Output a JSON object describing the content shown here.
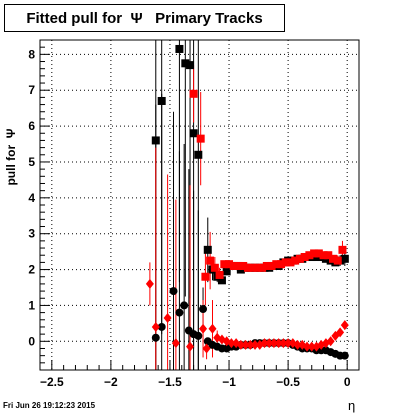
{
  "chart_data": {
    "type": "scatter",
    "title": "Fitted pull for  Ψ   Primary Tracks",
    "xlabel": "η",
    "ylabel": "pull for  Ψ",
    "xlim": [
      -2.6,
      0.1
    ],
    "ylim": [
      -0.8,
      8.4
    ],
    "xticks": [
      -2.5,
      -2,
      -1.5,
      -1,
      -0.5,
      0
    ],
    "xtick_labels": [
      "−2.5",
      "−2",
      "−1.5",
      "−1",
      "−0.5",
      "0"
    ],
    "yticks": [
      0,
      1,
      2,
      3,
      4,
      5,
      6,
      7,
      8
    ],
    "ytick_labels": [
      "0",
      "1",
      "2",
      "3",
      "4",
      "5",
      "6",
      "7",
      "8"
    ],
    "grid": true,
    "footer": "Fri Jun 26 19:12:23 2015",
    "series": [
      {
        "color": "#000000",
        "marker": "square",
        "points": [
          {
            "x": -1.62,
            "y": 5.6,
            "err": 6.5
          },
          {
            "x": -1.57,
            "y": 6.7,
            "err": 6.5
          },
          {
            "x": -1.42,
            "y": 8.15,
            "err": 6.5
          },
          {
            "x": -1.37,
            "y": 7.75,
            "err": 6.5
          },
          {
            "x": -1.33,
            "y": 7.7,
            "err": 6.5
          },
          {
            "x": -1.3,
            "y": 5.8,
            "err": 6.0
          },
          {
            "x": -1.26,
            "y": 5.2,
            "err": 6.0
          },
          {
            "x": -1.18,
            "y": 2.55,
            "err": 0.9
          },
          {
            "x": -1.14,
            "y": 2.0,
            "err": 0.3
          },
          {
            "x": -1.1,
            "y": 1.8,
            "err": 0.15
          },
          {
            "x": -1.06,
            "y": 1.7,
            "err": 0.1
          },
          {
            "x": -1.02,
            "y": 1.95,
            "err": 0.1
          },
          {
            "x": -0.98,
            "y": 2.1,
            "err": 0.08
          },
          {
            "x": -0.94,
            "y": 2.1,
            "err": 0.08
          },
          {
            "x": -0.9,
            "y": 2.0,
            "err": 0.08
          },
          {
            "x": -0.86,
            "y": 2.05,
            "err": 0.06
          },
          {
            "x": -0.82,
            "y": 2.05,
            "err": 0.06
          },
          {
            "x": -0.78,
            "y": 2.05,
            "err": 0.06
          },
          {
            "x": -0.74,
            "y": 2.05,
            "err": 0.06
          },
          {
            "x": -0.7,
            "y": 2.05,
            "err": 0.06
          },
          {
            "x": -0.66,
            "y": 2.05,
            "err": 0.06
          },
          {
            "x": -0.62,
            "y": 2.1,
            "err": 0.06
          },
          {
            "x": -0.58,
            "y": 2.1,
            "err": 0.06
          },
          {
            "x": -0.54,
            "y": 2.2,
            "err": 0.06
          },
          {
            "x": -0.5,
            "y": 2.25,
            "err": 0.06
          },
          {
            "x": -0.46,
            "y": 2.25,
            "err": 0.06
          },
          {
            "x": -0.42,
            "y": 2.3,
            "err": 0.06
          },
          {
            "x": -0.38,
            "y": 2.3,
            "err": 0.06
          },
          {
            "x": -0.34,
            "y": 2.35,
            "err": 0.06
          },
          {
            "x": -0.3,
            "y": 2.35,
            "err": 0.06
          },
          {
            "x": -0.26,
            "y": 2.35,
            "err": 0.06
          },
          {
            "x": -0.22,
            "y": 2.35,
            "err": 0.06
          },
          {
            "x": -0.18,
            "y": 2.3,
            "err": 0.06
          },
          {
            "x": -0.14,
            "y": 2.25,
            "err": 0.06
          },
          {
            "x": -0.1,
            "y": 2.2,
            "err": 0.1
          },
          {
            "x": -0.06,
            "y": 2.25,
            "err": 0.15
          },
          {
            "x": -0.02,
            "y": 2.3,
            "err": 0.2
          }
        ]
      },
      {
        "color": "#ff0000",
        "marker": "square",
        "points": [
          {
            "x": -1.3,
            "y": 6.9,
            "err": 0.8
          },
          {
            "x": -1.24,
            "y": 5.65,
            "err": 1.3
          },
          {
            "x": -1.2,
            "y": 1.8,
            "err": 0.8
          },
          {
            "x": -1.16,
            "y": 2.25,
            "err": 0.8
          },
          {
            "x": -1.12,
            "y": 2.05,
            "err": 0.3
          },
          {
            "x": -1.08,
            "y": 1.85,
            "err": 0.2
          },
          {
            "x": -1.04,
            "y": 2.15,
            "err": 0.1
          },
          {
            "x": -1.0,
            "y": 2.15,
            "err": 0.1
          },
          {
            "x": -0.96,
            "y": 2.1,
            "err": 0.08
          },
          {
            "x": -0.92,
            "y": 2.1,
            "err": 0.08
          },
          {
            "x": -0.88,
            "y": 2.1,
            "err": 0.08
          },
          {
            "x": -0.84,
            "y": 2.05,
            "err": 0.06
          },
          {
            "x": -0.8,
            "y": 2.05,
            "err": 0.06
          },
          {
            "x": -0.76,
            "y": 2.05,
            "err": 0.06
          },
          {
            "x": -0.72,
            "y": 2.05,
            "err": 0.06
          },
          {
            "x": -0.68,
            "y": 2.1,
            "err": 0.06
          },
          {
            "x": -0.64,
            "y": 2.1,
            "err": 0.06
          },
          {
            "x": -0.6,
            "y": 2.15,
            "err": 0.06
          },
          {
            "x": -0.56,
            "y": 2.15,
            "err": 0.06
          },
          {
            "x": -0.52,
            "y": 2.2,
            "err": 0.06
          },
          {
            "x": -0.48,
            "y": 2.2,
            "err": 0.06
          },
          {
            "x": -0.44,
            "y": 2.25,
            "err": 0.06
          },
          {
            "x": -0.4,
            "y": 2.3,
            "err": 0.06
          },
          {
            "x": -0.36,
            "y": 2.35,
            "err": 0.06
          },
          {
            "x": -0.32,
            "y": 2.4,
            "err": 0.06
          },
          {
            "x": -0.28,
            "y": 2.45,
            "err": 0.06
          },
          {
            "x": -0.24,
            "y": 2.45,
            "err": 0.06
          },
          {
            "x": -0.2,
            "y": 2.4,
            "err": 0.06
          },
          {
            "x": -0.16,
            "y": 2.4,
            "err": 0.06
          },
          {
            "x": -0.12,
            "y": 2.3,
            "err": 0.1
          },
          {
            "x": -0.08,
            "y": 2.25,
            "err": 0.15
          },
          {
            "x": -0.04,
            "y": 2.55,
            "err": 0.25
          }
        ]
      },
      {
        "color": "#000000",
        "marker": "circle",
        "points": [
          {
            "x": -1.62,
            "y": 0.1,
            "err": 6.5
          },
          {
            "x": -1.57,
            "y": 0.4,
            "err": 6.5
          },
          {
            "x": -1.47,
            "y": 1.4,
            "err": 5.0
          },
          {
            "x": -1.42,
            "y": 0.8,
            "err": 4.5
          },
          {
            "x": -1.38,
            "y": 1.0,
            "err": 4.5
          },
          {
            "x": -1.34,
            "y": 0.3,
            "err": 4.5
          },
          {
            "x": -1.3,
            "y": 0.2,
            "err": 4.0
          },
          {
            "x": -1.26,
            "y": 0.15,
            "err": 3.5
          },
          {
            "x": -1.22,
            "y": 0.9,
            "err": 0.6
          },
          {
            "x": -1.18,
            "y": 0.0,
            "err": 0.1
          },
          {
            "x": -1.14,
            "y": -0.1,
            "err": 0.1
          },
          {
            "x": -1.1,
            "y": -0.15,
            "err": 0.08
          },
          {
            "x": -1.06,
            "y": -0.2,
            "err": 0.06
          },
          {
            "x": -1.02,
            "y": -0.2,
            "err": 0.06
          },
          {
            "x": -0.98,
            "y": -0.15,
            "err": 0.05
          },
          {
            "x": -0.94,
            "y": -0.15,
            "err": 0.05
          },
          {
            "x": -0.9,
            "y": -0.1,
            "err": 0.05
          },
          {
            "x": -0.86,
            "y": -0.1,
            "err": 0.05
          },
          {
            "x": -0.82,
            "y": -0.1,
            "err": 0.05
          },
          {
            "x": -0.78,
            "y": -0.05,
            "err": 0.05
          },
          {
            "x": -0.74,
            "y": -0.05,
            "err": 0.05
          },
          {
            "x": -0.7,
            "y": -0.05,
            "err": 0.05
          },
          {
            "x": -0.66,
            "y": -0.05,
            "err": 0.05
          },
          {
            "x": -0.62,
            "y": -0.05,
            "err": 0.05
          },
          {
            "x": -0.58,
            "y": -0.05,
            "err": 0.05
          },
          {
            "x": -0.54,
            "y": -0.05,
            "err": 0.05
          },
          {
            "x": -0.5,
            "y": -0.05,
            "err": 0.05
          },
          {
            "x": -0.46,
            "y": -0.1,
            "err": 0.05
          },
          {
            "x": -0.42,
            "y": -0.15,
            "err": 0.05
          },
          {
            "x": -0.38,
            "y": -0.2,
            "err": 0.05
          },
          {
            "x": -0.34,
            "y": -0.2,
            "err": 0.05
          },
          {
            "x": -0.3,
            "y": -0.2,
            "err": 0.05
          },
          {
            "x": -0.26,
            "y": -0.25,
            "err": 0.05
          },
          {
            "x": -0.22,
            "y": -0.25,
            "err": 0.05
          },
          {
            "x": -0.18,
            "y": -0.25,
            "err": 0.05
          },
          {
            "x": -0.14,
            "y": -0.3,
            "err": 0.05
          },
          {
            "x": -0.1,
            "y": -0.35,
            "err": 0.05
          },
          {
            "x": -0.06,
            "y": -0.4,
            "err": 0.08
          },
          {
            "x": -0.02,
            "y": -0.4,
            "err": 0.1
          }
        ]
      },
      {
        "color": "#ff0000",
        "marker": "diamond",
        "points": [
          {
            "x": -1.67,
            "y": 1.6,
            "err": 0.6
          },
          {
            "x": -1.62,
            "y": 0.4,
            "err": 5.0
          },
          {
            "x": -1.52,
            "y": 0.65,
            "err": 4.0
          },
          {
            "x": -1.45,
            "y": -0.05,
            "err": 4.0
          },
          {
            "x": -1.33,
            "y": -0.15,
            "err": 4.5
          },
          {
            "x": -1.22,
            "y": 0.35,
            "err": 0.8
          },
          {
            "x": -1.19,
            "y": -0.2,
            "err": 0.3
          },
          {
            "x": -1.14,
            "y": 0.35,
            "err": 0.8
          },
          {
            "x": -1.1,
            "y": 0.1,
            "err": 0.2
          },
          {
            "x": -1.06,
            "y": 0.05,
            "err": 0.1
          },
          {
            "x": -1.02,
            "y": 0.0,
            "err": 0.08
          },
          {
            "x": -0.98,
            "y": -0.05,
            "err": 0.06
          },
          {
            "x": -0.94,
            "y": -0.05,
            "err": 0.06
          },
          {
            "x": -0.9,
            "y": -0.1,
            "err": 0.06
          },
          {
            "x": -0.86,
            "y": -0.1,
            "err": 0.05
          },
          {
            "x": -0.82,
            "y": -0.1,
            "err": 0.05
          },
          {
            "x": -0.78,
            "y": -0.1,
            "err": 0.05
          },
          {
            "x": -0.74,
            "y": -0.1,
            "err": 0.05
          },
          {
            "x": -0.7,
            "y": -0.05,
            "err": 0.05
          },
          {
            "x": -0.66,
            "y": -0.05,
            "err": 0.05
          },
          {
            "x": -0.62,
            "y": -0.05,
            "err": 0.05
          },
          {
            "x": -0.58,
            "y": -0.05,
            "err": 0.05
          },
          {
            "x": -0.54,
            "y": -0.05,
            "err": 0.05
          },
          {
            "x": -0.5,
            "y": -0.05,
            "err": 0.05
          },
          {
            "x": -0.46,
            "y": -0.05,
            "err": 0.05
          },
          {
            "x": -0.42,
            "y": -0.1,
            "err": 0.05
          },
          {
            "x": -0.38,
            "y": -0.1,
            "err": 0.05
          },
          {
            "x": -0.34,
            "y": -0.15,
            "err": 0.05
          },
          {
            "x": -0.3,
            "y": -0.15,
            "err": 0.05
          },
          {
            "x": -0.26,
            "y": -0.15,
            "err": 0.05
          },
          {
            "x": -0.22,
            "y": -0.1,
            "err": 0.05
          },
          {
            "x": -0.18,
            "y": -0.05,
            "err": 0.05
          },
          {
            "x": -0.14,
            "y": 0.0,
            "err": 0.05
          },
          {
            "x": -0.1,
            "y": 0.15,
            "err": 0.08
          },
          {
            "x": -0.06,
            "y": 0.25,
            "err": 0.1
          },
          {
            "x": -0.02,
            "y": 0.45,
            "err": 0.12
          }
        ]
      }
    ]
  }
}
